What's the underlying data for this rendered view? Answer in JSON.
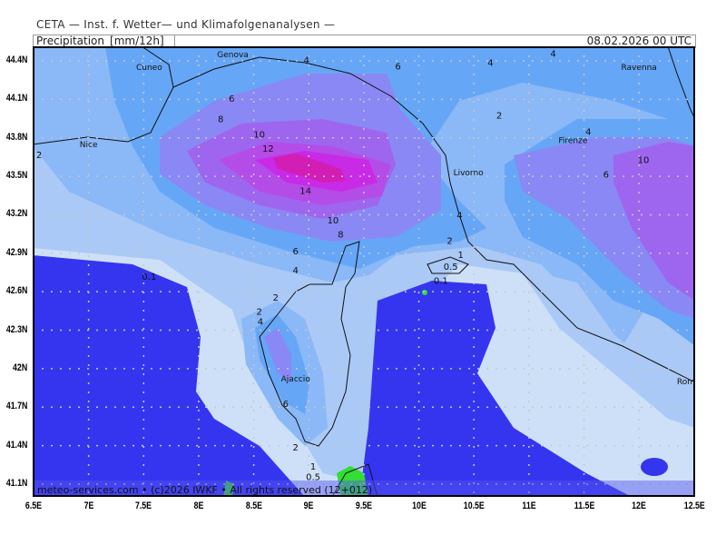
{
  "header": {
    "org": "CETA — Inst. f. Wetter— und Klimafolgenanalysen —",
    "product": "Precipitation_[mm/12h]",
    "datetime": "08.02.2026 00 UTC"
  },
  "footer": {
    "copyright": "meteo-services.com • (c)2026 IWKF • All rights reserved (12+012)"
  },
  "axes": {
    "lat": [
      "44.4N",
      "44.1N",
      "43.8N",
      "43.5N",
      "43.2N",
      "42.9N",
      "42.6N",
      "42.3N",
      "42N",
      "41.7N",
      "41.4N",
      "41.1N"
    ],
    "lon": [
      "6.5E",
      "7E",
      "7.5E",
      "8E",
      "8.5E",
      "9E",
      "9.5E",
      "10E",
      "10.5E",
      "11E",
      "11.5E",
      "12E",
      "12.5E"
    ]
  },
  "levels": {
    "values": [
      0.1,
      0.5,
      1,
      2,
      4,
      6,
      8,
      10,
      12,
      14
    ],
    "colors": {
      "below": "#3535f0",
      "0.1": "#cde0f8",
      "0.5": "#aac9f6",
      "2": "#8bb8f6",
      "4": "#66a6f6",
      "6": "#8a88f4",
      "8": "#9e66ee",
      "10": "#b44ce8",
      "12": "#c82ae6",
      "14": "#d21eb4"
    },
    "land_dry": "#33dd33",
    "contour_line": "#22cc22"
  },
  "places": [
    {
      "name": "Genova",
      "lon": 8.31,
      "lat": 44.45
    },
    {
      "name": "Cuneo",
      "lon": 7.55,
      "lat": 44.35
    },
    {
      "name": "Ravenna",
      "lon": 12.0,
      "lat": 44.35
    },
    {
      "name": "Nice",
      "lon": 7.0,
      "lat": 43.75
    },
    {
      "name": "Firenze",
      "lon": 11.4,
      "lat": 43.78
    },
    {
      "name": "Livorno",
      "lon": 10.45,
      "lat": 43.53
    },
    {
      "name": "Ajaccio",
      "lon": 8.88,
      "lat": 41.92
    },
    {
      "name": "Rome",
      "lon": 12.45,
      "lat": 41.9
    }
  ],
  "contour_labels": [
    {
      "t": "4",
      "lon": 8.98,
      "lat": 44.41
    },
    {
      "t": "6",
      "lon": 9.81,
      "lat": 44.36
    },
    {
      "t": "4",
      "lon": 10.65,
      "lat": 44.39
    },
    {
      "t": "4",
      "lon": 11.22,
      "lat": 44.46
    },
    {
      "t": "2",
      "lon": 10.73,
      "lat": 43.98
    },
    {
      "t": "4",
      "lon": 11.54,
      "lat": 43.85
    },
    {
      "t": "6",
      "lon": 11.7,
      "lat": 43.52
    },
    {
      "t": "10",
      "lon": 12.04,
      "lat": 43.63
    },
    {
      "t": "6",
      "lon": 8.3,
      "lat": 44.11
    },
    {
      "t": "8",
      "lon": 8.2,
      "lat": 43.95
    },
    {
      "t": "10",
      "lon": 8.55,
      "lat": 43.83
    },
    {
      "t": "12",
      "lon": 8.63,
      "lat": 43.72
    },
    {
      "t": "14",
      "lon": 8.97,
      "lat": 43.39
    },
    {
      "t": "10",
      "lon": 9.22,
      "lat": 43.16
    },
    {
      "t": "8",
      "lon": 9.29,
      "lat": 43.05
    },
    {
      "t": "6",
      "lon": 8.88,
      "lat": 42.92
    },
    {
      "t": "4",
      "lon": 8.88,
      "lat": 42.77
    },
    {
      "t": "4",
      "lon": 10.37,
      "lat": 43.2
    },
    {
      "t": "2",
      "lon": 10.28,
      "lat": 43.0
    },
    {
      "t": "1",
      "lon": 10.38,
      "lat": 42.89
    },
    {
      "t": "0.5",
      "lon": 10.29,
      "lat": 42.8
    },
    {
      "t": "0.1",
      "lon": 10.2,
      "lat": 42.69
    },
    {
      "t": "0.1",
      "lon": 7.55,
      "lat": 42.72
    },
    {
      "t": "2",
      "lon": 8.7,
      "lat": 42.56
    },
    {
      "t": "2",
      "lon": 8.55,
      "lat": 42.45
    },
    {
      "t": "4",
      "lon": 8.56,
      "lat": 42.37
    },
    {
      "t": "6",
      "lon": 8.79,
      "lat": 41.73
    },
    {
      "t": "2",
      "lon": 8.88,
      "lat": 41.39
    },
    {
      "t": "1",
      "lon": 9.04,
      "lat": 41.24
    },
    {
      "t": "0.5",
      "lon": 9.04,
      "lat": 41.16
    },
    {
      "t": "2",
      "lon": 6.55,
      "lat": 43.67
    }
  ]
}
